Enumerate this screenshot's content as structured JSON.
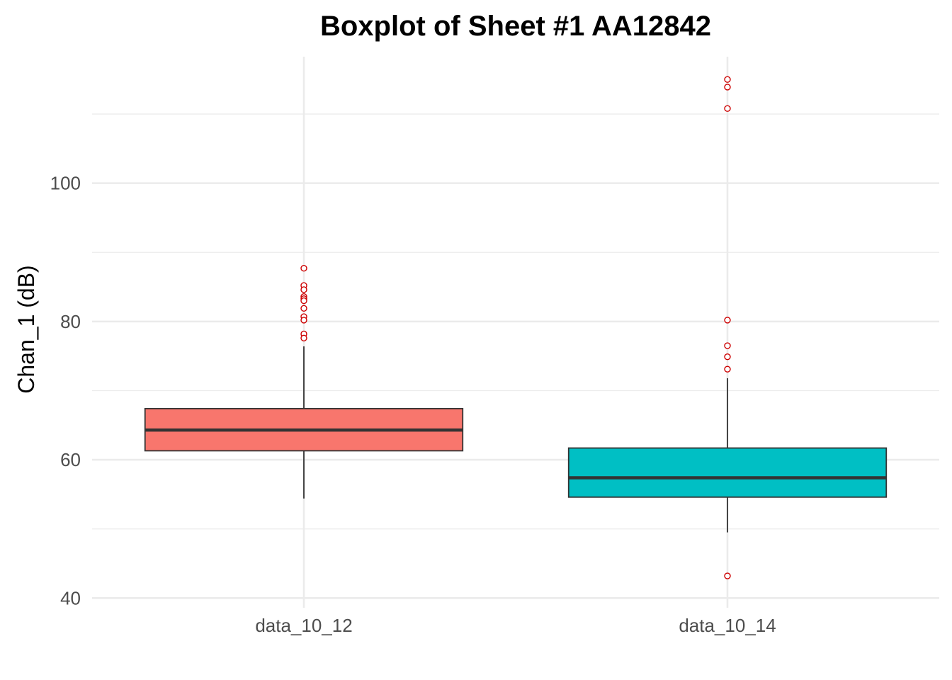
{
  "chart_data": {
    "type": "boxplot",
    "title": "Boxplot of Sheet #1 AA12842",
    "xlabel": "",
    "ylabel": "Chan_1 (dB)",
    "ylim": [
      38.6,
      118.3
    ],
    "yticks": [
      40,
      60,
      80,
      100
    ],
    "y_minor_ticks": [
      50,
      70,
      90,
      110
    ],
    "grid": true,
    "categories": [
      "data_10_12",
      "data_10_14"
    ],
    "boxes": [
      {
        "category": "data_10_12",
        "fill": "#F8766D",
        "whisker_low": 54.4,
        "q1": 61.3,
        "median": 64.3,
        "q3": 67.4,
        "whisker_high": 76.4,
        "outliers": [
          87.7,
          85.2,
          84.6,
          83.6,
          83.3,
          83.0,
          81.9,
          80.7,
          80.2,
          78.2,
          77.6
        ]
      },
      {
        "category": "data_10_14",
        "fill": "#00BFC4",
        "whisker_low": 49.5,
        "q1": 54.6,
        "median": 57.4,
        "q3": 61.7,
        "whisker_high": 71.8,
        "outliers": [
          115.0,
          113.9,
          110.8,
          80.2,
          76.5,
          74.9,
          73.1,
          43.2
        ]
      }
    ],
    "colors": {
      "grid": "#ebebeb",
      "box_line": "#333333",
      "outlier_stroke": "#cc0000"
    }
  }
}
